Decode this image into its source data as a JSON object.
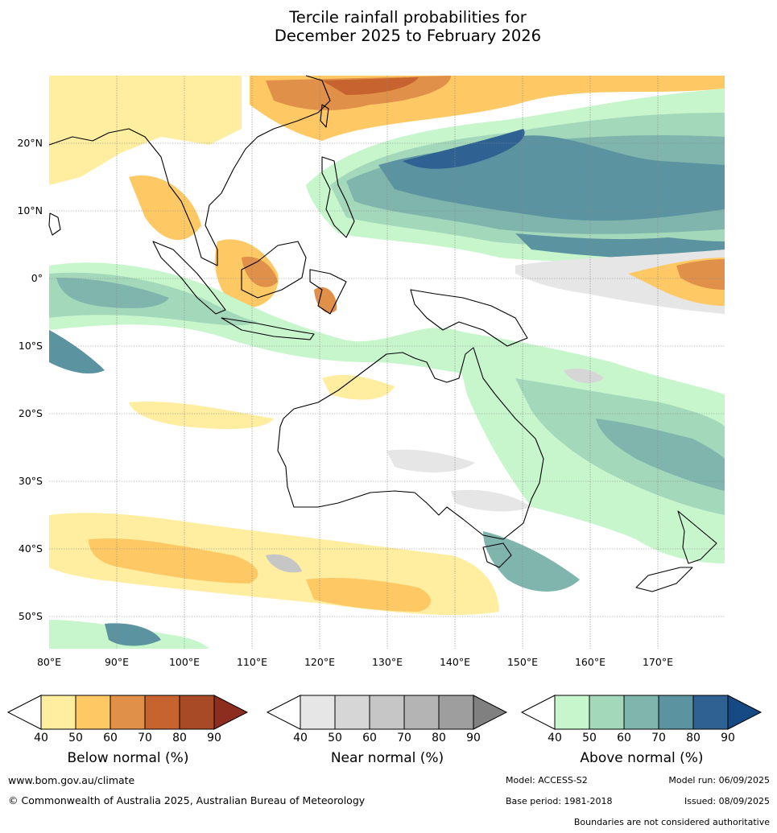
{
  "title": {
    "line1": "Tercile rainfall probabilities for",
    "line2": "December 2025 to February 2026"
  },
  "map": {
    "lon_labels": [
      "80°E",
      "90°E",
      "100°E",
      "110°E",
      "120°E",
      "130°E",
      "140°E",
      "150°E",
      "160°E",
      "170°E"
    ],
    "lat_labels": [
      "20°N",
      "10°N",
      "0°",
      "10°S",
      "20°S",
      "30°S",
      "40°S",
      "50°S"
    ],
    "lon_range": [
      80,
      180
    ],
    "lat_range": [
      -55,
      30
    ]
  },
  "colorbars": [
    {
      "name": "below",
      "title": "Below normal (%)",
      "ticks": [
        "40",
        "50",
        "60",
        "70",
        "80",
        "90"
      ],
      "colors": [
        "#ffeda0",
        "#fec965",
        "#e09048",
        "#c7632e",
        "#a84a26",
        "#8c2d1f"
      ]
    },
    {
      "name": "near",
      "title": "Near normal (%)",
      "ticks": [
        "40",
        "50",
        "60",
        "70",
        "80",
        "90"
      ],
      "colors": [
        "#e6e6e6",
        "#d6d6d6",
        "#c6c6c6",
        "#b4b4b4",
        "#9e9e9e",
        "#808080"
      ]
    },
    {
      "name": "above",
      "title": "Above normal (%)",
      "ticks": [
        "40",
        "50",
        "60",
        "70",
        "80",
        "90"
      ],
      "colors": [
        "#c7f6cd",
        "#a4d8bb",
        "#7fb5ad",
        "#5b93a0",
        "#2f6293",
        "#154a85"
      ]
    }
  ],
  "footer": {
    "url": "www.bom.gov.au/climate",
    "copyright": "© Commonwealth of Australia 2025, Australian Bureau of Meteorology",
    "model": "Model: ACCESS-S2",
    "model_run": "Model run: 06/09/2025",
    "base_period": "Base period: 1981-2018",
    "issued": "Issued: 08/09/2025",
    "disclaimer": "Boundaries are not considered authoritative"
  }
}
